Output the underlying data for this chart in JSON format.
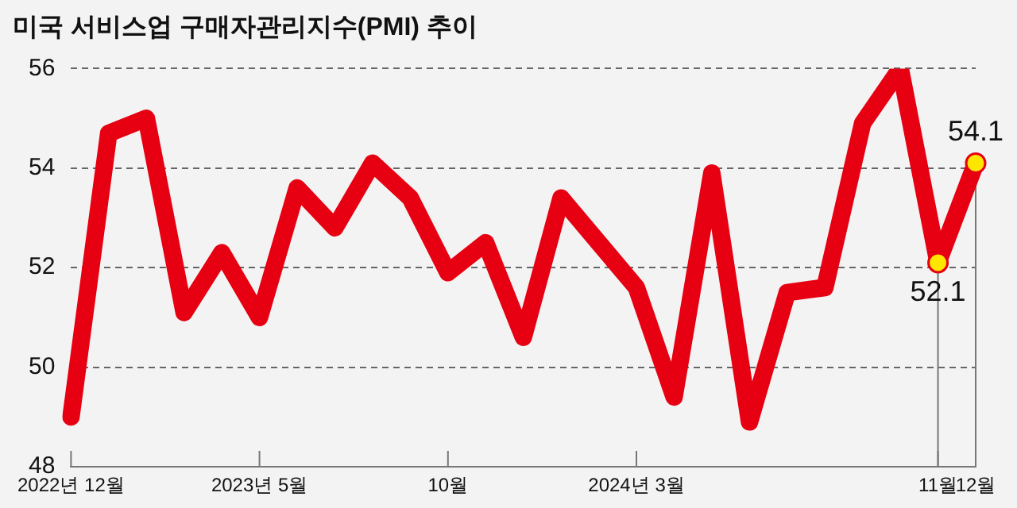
{
  "chart_data": {
    "type": "line",
    "title": "미국 서비스업 구매자관리지수(PMI) 추이",
    "categories": [
      "2022년 12월",
      null,
      null,
      null,
      null,
      "2023년 5월",
      null,
      null,
      null,
      null,
      "10월",
      null,
      null,
      null,
      null,
      "2024년 3월",
      null,
      null,
      null,
      null,
      null,
      null,
      null,
      "11월",
      "12월"
    ],
    "series": [
      {
        "color": "#e60012",
        "values": [
          49.0,
          54.7,
          55.0,
          51.1,
          52.3,
          51.0,
          53.6,
          52.8,
          54.1,
          53.4,
          51.9,
          52.5,
          50.6,
          53.4,
          52.5,
          51.6,
          49.4,
          53.9,
          48.9,
          51.5,
          51.6,
          54.9,
          56.0,
          52.1,
          54.1
        ],
        "marker": "none"
      },
      {
        "type": "scatter",
        "color": "#ffe600",
        "marker": "circle",
        "values": [
          null,
          null,
          null,
          null,
          null,
          null,
          null,
          null,
          null,
          null,
          null,
          null,
          null,
          null,
          null,
          null,
          null,
          null,
          null,
          null,
          null,
          null,
          null,
          52.1,
          54.1
        ],
        "value_labels": [
          null,
          null,
          null,
          null,
          null,
          null,
          null,
          null,
          null,
          null,
          null,
          null,
          null,
          null,
          null,
          null,
          null,
          null,
          null,
          null,
          null,
          null,
          null,
          "52.1",
          "54.1"
        ]
      }
    ],
    "ylim": [
      48,
      56
    ],
    "yticks": [
      48,
      50,
      52,
      54,
      56
    ],
    "grid": "y",
    "line_style": "solid",
    "legend": false
  }
}
